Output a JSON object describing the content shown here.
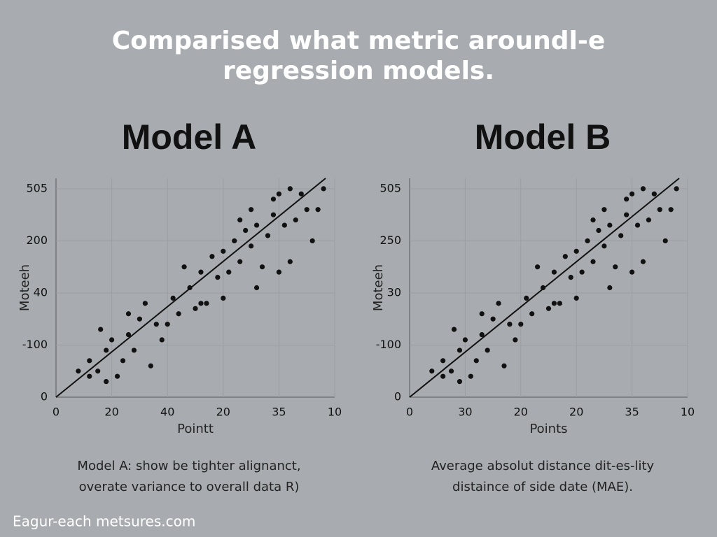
{
  "title": [
    "Comparised what metric aroundl-e",
    "regression models."
  ],
  "chart_data": [
    {
      "type": "scatter",
      "title": "Model A",
      "x_label": "Pointt",
      "y_label": "Moteeh",
      "xlim": [
        0,
        5
      ],
      "ylim": [
        0,
        4.2
      ],
      "xticks": [
        {
          "value": 0,
          "label": "0"
        },
        {
          "value": 1,
          "label": "20"
        },
        {
          "value": 2,
          "label": "40"
        },
        {
          "value": 3,
          "label": "20"
        },
        {
          "value": 4,
          "label": "35"
        },
        {
          "value": 5,
          "label": "10"
        }
      ],
      "yticks": [
        {
          "value": 0,
          "label": "0"
        },
        {
          "value": 1,
          "label": "-100"
        },
        {
          "value": 2,
          "label": "40"
        },
        {
          "value": 3,
          "label": "200"
        },
        {
          "value": 4,
          "label": "505"
        }
      ],
      "color": "#111111",
      "x": [
        0.4,
        0.6,
        0.6,
        0.8,
        0.75,
        0.9,
        1.0,
        0.9,
        1.2,
        1.3,
        1.4,
        1.5,
        1.3,
        1.7,
        1.8,
        1.6,
        2.0,
        2.1,
        2.2,
        1.9,
        2.4,
        2.5,
        2.3,
        2.6,
        2.7,
        2.9,
        3.0,
        2.8,
        3.1,
        3.2,
        3.3,
        3.4,
        3.0,
        3.5,
        3.6,
        3.7,
        3.5,
        3.8,
        3.9,
        4.0,
        4.1,
        3.9,
        4.2,
        4.3,
        4.4,
        4.5,
        4.2,
        4.6,
        4.7,
        3.6,
        2.6,
        1.1,
        4.0,
        3.3,
        4.8
      ],
      "values": [
        0.5,
        0.7,
        0.4,
        1.3,
        0.5,
        0.3,
        1.1,
        0.9,
        0.7,
        1.2,
        0.9,
        1.5,
        1.6,
        0.6,
        1.4,
        1.8,
        1.4,
        1.9,
        1.6,
        1.1,
        2.1,
        1.7,
        2.5,
        2.4,
        1.8,
        2.3,
        2.8,
        2.7,
        2.4,
        3.0,
        2.6,
        3.2,
        1.9,
        2.9,
        3.3,
        2.5,
        3.6,
        3.1,
        3.5,
        2.4,
        3.3,
        3.8,
        4.0,
        3.4,
        3.9,
        3.6,
        2.6,
        3.0,
        3.6,
        2.1,
        1.8,
        0.4,
        3.9,
        3.4,
        4.0
      ],
      "caption": [
        "Model A: show be tighter alignanct,",
        "overate variance to overall data R)"
      ]
    },
    {
      "type": "scatter",
      "title": "Model B",
      "x_label": "Points",
      "y_label": "Moteeh",
      "xlim": [
        0,
        5
      ],
      "ylim": [
        0,
        4.2
      ],
      "xticks": [
        {
          "value": 0,
          "label": "0"
        },
        {
          "value": 1,
          "label": "30"
        },
        {
          "value": 2,
          "label": "20"
        },
        {
          "value": 3,
          "label": "20"
        },
        {
          "value": 4,
          "label": "35"
        },
        {
          "value": 5,
          "label": "10"
        }
      ],
      "yticks": [
        {
          "value": 0,
          "label": "0"
        },
        {
          "value": 1,
          "label": "-100"
        },
        {
          "value": 2,
          "label": "30"
        },
        {
          "value": 3,
          "label": "250"
        },
        {
          "value": 4,
          "label": "505"
        }
      ],
      "color": "#111111",
      "x": [
        0.4,
        0.6,
        0.6,
        0.8,
        0.75,
        0.9,
        1.0,
        0.9,
        1.2,
        1.3,
        1.4,
        1.5,
        1.3,
        1.7,
        1.8,
        1.6,
        2.0,
        2.1,
        2.2,
        1.9,
        2.4,
        2.5,
        2.3,
        2.6,
        2.7,
        2.9,
        3.0,
        2.8,
        3.1,
        3.2,
        3.3,
        3.4,
        3.0,
        3.5,
        3.6,
        3.7,
        3.5,
        3.8,
        3.9,
        4.0,
        4.1,
        3.9,
        4.2,
        4.3,
        4.4,
        4.5,
        4.2,
        4.6,
        4.7,
        3.6,
        2.6,
        1.1,
        4.0,
        3.3,
        4.8
      ],
      "values": [
        0.5,
        0.7,
        0.4,
        1.3,
        0.5,
        0.3,
        1.1,
        0.9,
        0.7,
        1.2,
        0.9,
        1.5,
        1.6,
        0.6,
        1.4,
        1.8,
        1.4,
        1.9,
        1.6,
        1.1,
        2.1,
        1.7,
        2.5,
        2.4,
        1.8,
        2.3,
        2.8,
        2.7,
        2.4,
        3.0,
        2.6,
        3.2,
        1.9,
        2.9,
        3.3,
        2.5,
        3.6,
        3.1,
        3.5,
        2.4,
        3.3,
        3.8,
        4.0,
        3.4,
        3.9,
        3.6,
        2.6,
        3.0,
        3.6,
        2.1,
        1.8,
        0.4,
        3.9,
        3.4,
        4.0
      ],
      "caption": [
        "Average absolut distance dit-es-lity",
        "distaince of side date (MAE)."
      ]
    }
  ],
  "footer": "Eagur-each metsures.com"
}
